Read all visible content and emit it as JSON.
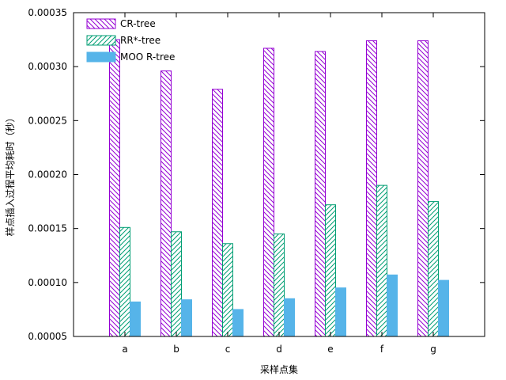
{
  "chart_data": {
    "type": "bar",
    "title": "",
    "xlabel": "采样点集",
    "ylabel": "样点插入过程平均耗时（秒）",
    "ylim": [
      5e-05,
      0.00035
    ],
    "yticks": [
      "0.00005",
      "0.00010",
      "0.00015",
      "0.00020",
      "0.00025",
      "0.00030",
      "0.00035"
    ],
    "categories": [
      "a",
      "b",
      "c",
      "d",
      "e",
      "f",
      "g"
    ],
    "legend_position": "top-left",
    "series": [
      {
        "name": "CR-tree",
        "color": "#9400d3",
        "fill": "hatch-backslash",
        "values": [
          0.000325,
          0.000296,
          0.000279,
          0.000317,
          0.000314,
          0.000324,
          0.000324
        ]
      },
      {
        "name": "RR*-tree",
        "color": "#009e73",
        "fill": "hatch-slash",
        "values": [
          0.000151,
          0.000147,
          0.000136,
          0.000145,
          0.000172,
          0.00019,
          0.000175
        ]
      },
      {
        "name": "MOO R-tree",
        "color": "#56b4e9",
        "fill": "solid",
        "values": [
          8.2e-05,
          8.4e-05,
          7.5e-05,
          8.5e-05,
          9.5e-05,
          0.000107,
          0.000102
        ]
      }
    ]
  }
}
